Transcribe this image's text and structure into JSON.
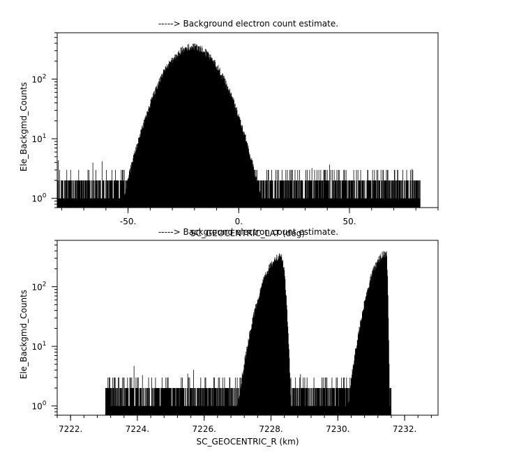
{
  "chart_data": [
    {
      "type": "bar",
      "style": "dense vertical spikes (count histogram over latitude)",
      "title": "-----> Background electron count estimate.",
      "xlabel": "SC_GEOCENTRIC_LAT (deg)",
      "ylabel": "Ele_Backgmd_Counts",
      "xscale": "linear",
      "yscale": "log",
      "xlim": [
        -82,
        90
      ],
      "ylim": [
        0.7,
        600
      ],
      "x_ticks": [
        {
          "value": -50,
          "label": "-50."
        },
        {
          "value": 0,
          "label": "0."
        },
        {
          "value": 50,
          "label": "50."
        }
      ],
      "y_ticks": [
        {
          "value": 1,
          "base": "10",
          "exp": "0"
        },
        {
          "value": 10,
          "base": "10",
          "exp": "1"
        },
        {
          "value": 100,
          "base": "10",
          "exp": "2"
        }
      ],
      "data_x_range": [
        -82,
        82
      ],
      "background_counts": [
        1,
        2,
        3
      ],
      "background_spike_max": 5,
      "envelopes": [
        {
          "center": -21,
          "half_width": 31,
          "peak": 350
        },
        {
          "center": -20,
          "half_width": 29,
          "peak": 250
        },
        {
          "center": -18,
          "half_width": 26,
          "peak": 120
        },
        {
          "center": -16,
          "half_width": 23,
          "peak": 50
        },
        {
          "center": -16,
          "half_width": 21,
          "peak": 25
        },
        {
          "center": -17,
          "half_width": 19,
          "peak": 12
        }
      ],
      "grid": false
    },
    {
      "type": "bar",
      "style": "dense vertical spikes (count histogram over radius)",
      "title": "-----> Background electron count estimate.",
      "xlabel": "SC_GEOCENTRIC_R (km)",
      "ylabel": "Ele_Backgmd_Counts",
      "xscale": "linear",
      "yscale": "log",
      "xlim": [
        7221.6,
        7233.0
      ],
      "ylim": [
        0.7,
        600
      ],
      "x_ticks": [
        {
          "value": 7222,
          "label": "7222."
        },
        {
          "value": 7224,
          "label": "7224."
        },
        {
          "value": 7226,
          "label": "7226."
        },
        {
          "value": 7228,
          "label": "7228."
        },
        {
          "value": 7230,
          "label": "7230."
        },
        {
          "value": 7232,
          "label": "7232."
        }
      ],
      "y_ticks": [
        {
          "value": 1,
          "base": "10",
          "exp": "0"
        },
        {
          "value": 10,
          "base": "10",
          "exp": "1"
        },
        {
          "value": 100,
          "base": "10",
          "exp": "2"
        }
      ],
      "data_x_range": [
        7223.05,
        7231.6
      ],
      "background_counts": [
        1,
        2,
        3
      ],
      "background_spike_max": 5,
      "envelopes": [
        {
          "start": 7227.0,
          "peak_x": 7228.3,
          "end": 7228.6,
          "peak": 320
        },
        {
          "start": 7227.3,
          "peak_x": 7228.2,
          "end": 7228.5,
          "peak": 180
        },
        {
          "start": 7227.5,
          "peak_x": 7228.0,
          "end": 7228.5,
          "peak": 50
        },
        {
          "start": 7227.6,
          "peak_x": 7228.0,
          "end": 7228.4,
          "peak": 15
        },
        {
          "start": 7230.3,
          "peak_x": 7231.45,
          "end": 7231.55,
          "peak": 360
        },
        {
          "start": 7230.5,
          "peak_x": 7231.4,
          "end": 7231.5,
          "peak": 100
        },
        {
          "start": 7230.7,
          "peak_x": 7231.35,
          "end": 7231.45,
          "peak": 30
        }
      ],
      "grid": false
    }
  ]
}
